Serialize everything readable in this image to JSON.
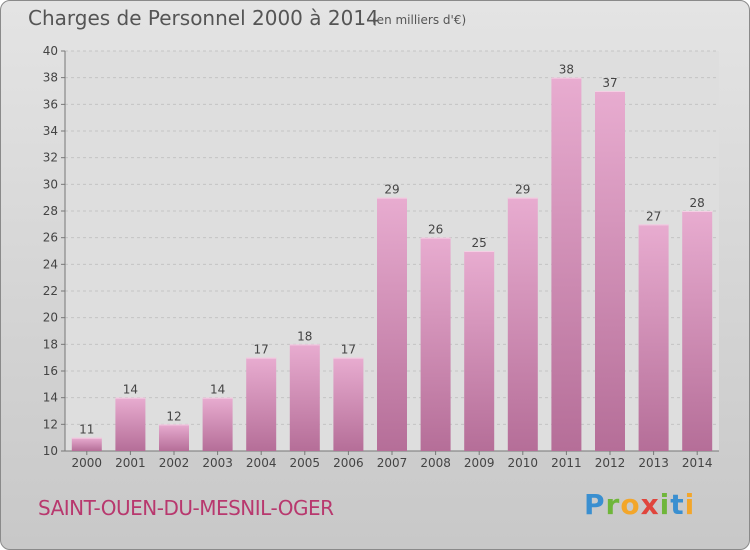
{
  "header": {
    "title": "Charges de Personnel 2000 à 2014",
    "subtitle": "(en milliers d'€)"
  },
  "footer": {
    "commune": "SAINT-OUEN-DU-MESNIL-OGER",
    "logo": [
      "P",
      "r",
      "o",
      "x",
      "i",
      "t",
      "i"
    ]
  },
  "colors": {
    "bar_top": "#e8acd0",
    "bar_bottom": "#b56e98",
    "commune_text": "#b8386e",
    "logo_letters": [
      "#3a8fd0",
      "#6fb63a",
      "#f3a62a",
      "#e0453c",
      "#6fb63a",
      "#3a8fd0",
      "#f3a62a"
    ]
  },
  "chart_data": {
    "type": "bar",
    "title": "Charges de Personnel 2000 à 2014",
    "subtitle": "(en milliers d'€)",
    "categories": [
      "2000",
      "2001",
      "2002",
      "2003",
      "2004",
      "2005",
      "2006",
      "2007",
      "2008",
      "2009",
      "2010",
      "2011",
      "2012",
      "2013",
      "2014"
    ],
    "values": [
      11,
      14,
      12,
      14,
      17,
      18,
      17,
      29,
      26,
      25,
      29,
      38,
      37,
      27,
      28
    ],
    "ylim": [
      10,
      40
    ],
    "yticks": [
      10,
      12,
      14,
      16,
      18,
      20,
      22,
      24,
      26,
      28,
      30,
      32,
      34,
      36,
      38,
      40
    ],
    "grid": true,
    "data_labels": true
  }
}
